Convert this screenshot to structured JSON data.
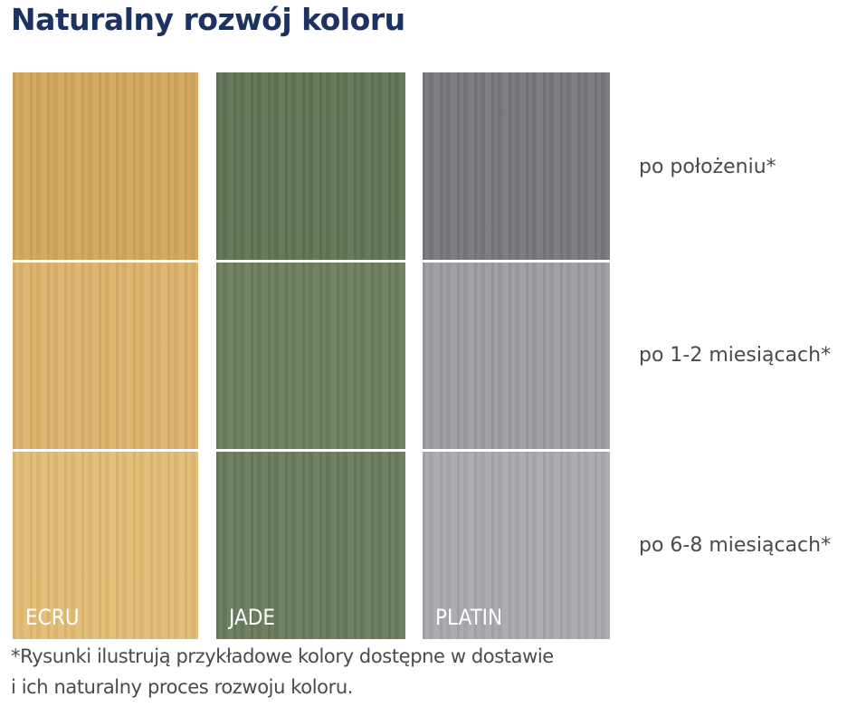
{
  "title": "Naturalny rozwój koloru",
  "columns": [
    {
      "label": "ECRU",
      "colors": [
        "#d3a65b",
        "#ddb36a",
        "#e2bc72"
      ]
    },
    {
      "label": "JADE",
      "colors": [
        "#627454",
        "#6c7e5e",
        "#687a5c"
      ]
    },
    {
      "label": "PLATIN",
      "colors": [
        "#77777c",
        "#9c9ca2",
        "#a8a8ad"
      ]
    }
  ],
  "rows": [
    {
      "label": "po położeniu*"
    },
    {
      "label": "po 1-2 miesiącach*"
    },
    {
      "label": "po 6-8 miesiącach*"
    }
  ],
  "footnote": {
    "line1": "*Rysunki ilustrują przykładowe kolory dostępne w dostawie",
    "line2": "i ich naturalny proces rozwoju koloru."
  },
  "colors": {
    "title": "#1b3262",
    "text": "#4a4a4a"
  }
}
